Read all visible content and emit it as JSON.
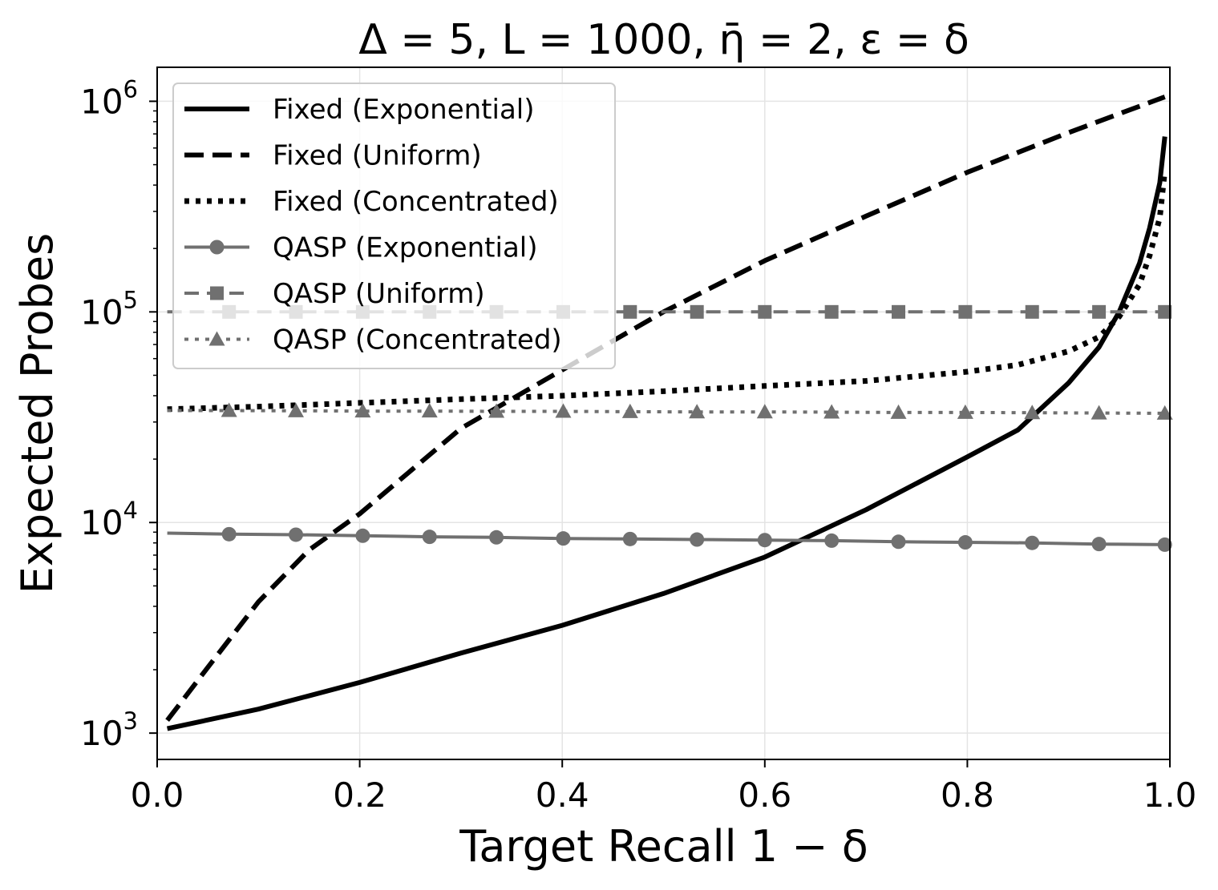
{
  "chart_data": {
    "type": "line",
    "title": "Δ = 5, L = 1000, η̄ = 2, ε = δ",
    "xlabel": "Target Recall 1 − δ",
    "ylabel": "Expected Probes",
    "xlim": [
      0.0,
      1.0
    ],
    "ylim": [
      750,
      1450000
    ],
    "yscale": "log",
    "grid": true,
    "legend_position": "upper-left",
    "x_ticks": [
      "0.0",
      "0.2",
      "0.4",
      "0.6",
      "0.8",
      "1.0"
    ],
    "y_ticks": [
      {
        "base": "10",
        "exp": "3"
      },
      {
        "base": "10",
        "exp": "4"
      },
      {
        "base": "10",
        "exp": "5"
      },
      {
        "base": "10",
        "exp": "6"
      }
    ],
    "series": [
      {
        "name": "Fixed (Exponential)",
        "color": "#000000",
        "dash": "solid",
        "marker": "none",
        "x": [
          0.01,
          0.1,
          0.2,
          0.3,
          0.4,
          0.5,
          0.6,
          0.7,
          0.8,
          0.85,
          0.9,
          0.93,
          0.95,
          0.97,
          0.98,
          0.99,
          0.995
        ],
        "y": [
          1050,
          1300,
          1740,
          2400,
          3250,
          4600,
          6850,
          11500,
          20500,
          27500,
          46000,
          68000,
          100000,
          170000,
          250000,
          410000,
          680000
        ]
      },
      {
        "name": "Fixed (Uniform)",
        "color": "#000000",
        "dash": "long",
        "marker": "none",
        "x": [
          0.01,
          0.05,
          0.1,
          0.15,
          0.2,
          0.3,
          0.4,
          0.5,
          0.6,
          0.7,
          0.8,
          0.9,
          0.995
        ],
        "y": [
          1150,
          2050,
          4200,
          7400,
          11000,
          28000,
          53000,
          100000,
          175000,
          285000,
          460000,
          710000,
          1050000
        ]
      },
      {
        "name": "Fixed (Concentrated)",
        "color": "#000000",
        "dash": "dotted",
        "marker": "none",
        "x": [
          0.01,
          0.1,
          0.2,
          0.3,
          0.4,
          0.5,
          0.6,
          0.7,
          0.8,
          0.85,
          0.9,
          0.93,
          0.95,
          0.97,
          0.98,
          0.99,
          0.995
        ],
        "y": [
          34500,
          35500,
          37000,
          38500,
          40000,
          42000,
          44500,
          47000,
          52000,
          56000,
          65000,
          76000,
          95000,
          135000,
          185000,
          280000,
          470000
        ]
      },
      {
        "name": "QASP (Exponential)",
        "color": "#707070",
        "dash": "solid",
        "marker": "circle",
        "x": [
          0.01,
          0.071,
          0.137,
          0.203,
          0.269,
          0.335,
          0.401,
          0.467,
          0.533,
          0.6,
          0.666,
          0.732,
          0.798,
          0.864,
          0.93,
          0.995
        ],
        "y": [
          8900,
          8800,
          8750,
          8650,
          8550,
          8500,
          8400,
          8350,
          8300,
          8250,
          8200,
          8100,
          8050,
          8000,
          7900,
          7850
        ]
      },
      {
        "name": "QASP (Uniform)",
        "color": "#707070",
        "dash": "long",
        "marker": "square",
        "x": [
          0.01,
          0.071,
          0.137,
          0.203,
          0.269,
          0.335,
          0.401,
          0.467,
          0.533,
          0.6,
          0.666,
          0.732,
          0.798,
          0.864,
          0.93,
          0.995
        ],
        "y": [
          100000,
          100000,
          100000,
          100000,
          100000,
          100000,
          100000,
          100000,
          100000,
          100000,
          100000,
          100000,
          100000,
          100000,
          100000,
          100000
        ]
      },
      {
        "name": "QASP (Concentrated)",
        "color": "#707070",
        "dash": "dotted",
        "marker": "triangle",
        "x": [
          0.01,
          0.071,
          0.137,
          0.203,
          0.269,
          0.335,
          0.401,
          0.467,
          0.533,
          0.6,
          0.666,
          0.732,
          0.798,
          0.864,
          0.93,
          0.995
        ],
        "y": [
          34000,
          34000,
          33900,
          33800,
          33800,
          33700,
          33700,
          33600,
          33500,
          33500,
          33400,
          33300,
          33300,
          33200,
          33100,
          33000
        ]
      }
    ]
  }
}
